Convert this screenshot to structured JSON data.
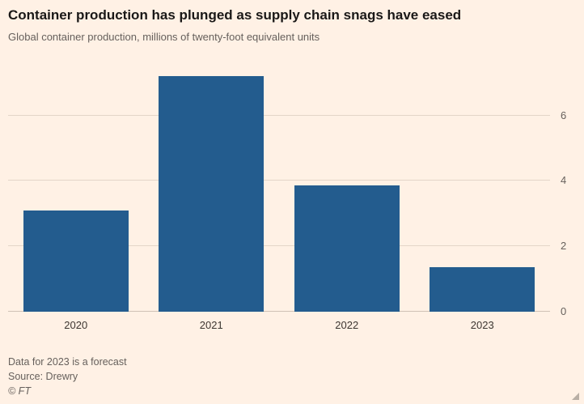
{
  "header": {
    "title": "Container production has plunged as supply chain snags have eased",
    "subtitle": "Global container production, millions of twenty-foot equivalent units"
  },
  "footer": {
    "note": "Data for 2023 is a forecast",
    "source": "Source: Drewry",
    "credit": "© FT"
  },
  "colors": {
    "background": "#FFF1E5",
    "bar": "#235C8E",
    "gridline": "#E3D5C8",
    "zero_line": "#CFC2B5",
    "title_text": "#1A1817",
    "muted_text": "#66605C"
  },
  "chart_data": {
    "type": "bar",
    "title": "Container production has plunged as supply chain snags have eased",
    "subtitle": "Global container production, millions of twenty-foot equivalent units",
    "categories": [
      "2020",
      "2021",
      "2022",
      "2023"
    ],
    "values": [
      3.1,
      7.2,
      3.85,
      1.35
    ],
    "xlabel": "",
    "ylabel": "millions of twenty-foot equivalent units",
    "ylim": [
      0,
      7.25
    ],
    "yticks": [
      0,
      2,
      4,
      6
    ],
    "ytick_side": "right",
    "grid": true,
    "legend": "none",
    "annotations": [
      "Data for 2023 is a forecast"
    ],
    "source": "Drewry"
  }
}
